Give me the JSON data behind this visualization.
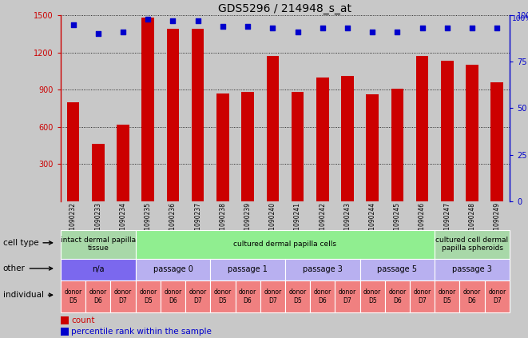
{
  "title": "GDS5296 / 214948_s_at",
  "samples": [
    "GSM1090232",
    "GSM1090233",
    "GSM1090234",
    "GSM1090235",
    "GSM1090236",
    "GSM1090237",
    "GSM1090238",
    "GSM1090239",
    "GSM1090240",
    "GSM1090241",
    "GSM1090242",
    "GSM1090243",
    "GSM1090244",
    "GSM1090245",
    "GSM1090246",
    "GSM1090247",
    "GSM1090248",
    "GSM1090249"
  ],
  "counts": [
    800,
    460,
    620,
    1480,
    1390,
    1390,
    870,
    880,
    1170,
    880,
    1000,
    1010,
    860,
    910,
    1170,
    1130,
    1100,
    960
  ],
  "percentiles": [
    95,
    90,
    91,
    98,
    97,
    97,
    94,
    94,
    93,
    91,
    93,
    93,
    91,
    91,
    93,
    93,
    93,
    93
  ],
  "ylim_left": [
    0,
    1500
  ],
  "ylim_right": [
    0,
    100
  ],
  "yticks_left": [
    300,
    600,
    900,
    1200,
    1500
  ],
  "yticks_right": [
    0,
    25,
    50,
    75,
    100
  ],
  "bar_color": "#cc0000",
  "dot_color": "#0000cc",
  "bg_color": "#c8c8c8",
  "cell_type_spans": [
    {
      "label": "intact dermal papilla\ntissue",
      "start": 0,
      "end": 3,
      "color": "#a8d8a8"
    },
    {
      "label": "cultured dermal papilla cells",
      "start": 3,
      "end": 15,
      "color": "#90ee90"
    },
    {
      "label": "cultured cell dermal\npapilla spheroids",
      "start": 15,
      "end": 18,
      "color": "#a8d8a8"
    }
  ],
  "other_spans": [
    {
      "label": "n/a",
      "start": 0,
      "end": 3,
      "color": "#7b68ee"
    },
    {
      "label": "passage 0",
      "start": 3,
      "end": 6,
      "color": "#b8b0f0"
    },
    {
      "label": "passage 1",
      "start": 6,
      "end": 9,
      "color": "#b8b0f0"
    },
    {
      "label": "passage 3",
      "start": 9,
      "end": 12,
      "color": "#b8b0f0"
    },
    {
      "label": "passage 5",
      "start": 12,
      "end": 15,
      "color": "#b8b0f0"
    },
    {
      "label": "passage 3",
      "start": 15,
      "end": 18,
      "color": "#b8b0f0"
    }
  ],
  "individual_labels": [
    "donor\nD5",
    "donor\nD6",
    "donor\nD7",
    "donor\nD5",
    "donor\nD6",
    "donor\nD7",
    "donor\nD5",
    "donor\nD6",
    "donor\nD7",
    "donor\nD5",
    "donor\nD6",
    "donor\nD7",
    "donor\nD5",
    "donor\nD6",
    "donor\nD7",
    "donor\nD5",
    "donor\nD6",
    "donor\nD7"
  ],
  "individual_color": "#f08080",
  "row_labels": [
    "cell type",
    "other",
    "individual"
  ],
  "legend_count_color": "#cc0000",
  "legend_pct_color": "#0000cc",
  "title_fontsize": 10,
  "bar_width": 0.5
}
